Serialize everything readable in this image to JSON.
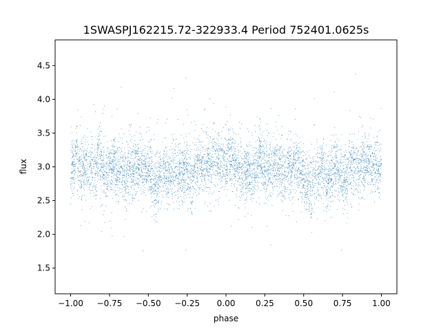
{
  "figure": {
    "title": "1SWASPJ162215.72-322933.4 Period 752401.0625s"
  },
  "chart_data": {
    "type": "scatter",
    "title": "1SWASPJ162215.72-322933.4 Period 752401.0625s",
    "xlabel": "phase",
    "ylabel": "flux",
    "xlim": [
      -1.1,
      1.1
    ],
    "ylim": [
      1.12,
      4.88
    ],
    "xticks": [
      {
        "value": -1.0,
        "label": "−1.00"
      },
      {
        "value": -0.75,
        "label": "−0.75"
      },
      {
        "value": -0.5,
        "label": "−0.50"
      },
      {
        "value": -0.25,
        "label": "−0.25"
      },
      {
        "value": 0.0,
        "label": "0.00"
      },
      {
        "value": 0.25,
        "label": "0.25"
      },
      {
        "value": 0.5,
        "label": "0.50"
      },
      {
        "value": 0.75,
        "label": "0.75"
      },
      {
        "value": 1.0,
        "label": "1.00"
      }
    ],
    "yticks": [
      {
        "value": 1.5,
        "label": "1.5"
      },
      {
        "value": 2.0,
        "label": "2.0"
      },
      {
        "value": 2.5,
        "label": "2.5"
      },
      {
        "value": 3.0,
        "label": "3.0"
      },
      {
        "value": 3.5,
        "label": "3.5"
      },
      {
        "value": 4.0,
        "label": "4.0"
      },
      {
        "value": 4.5,
        "label": "4.5"
      }
    ],
    "grid": false,
    "legend": "none",
    "point_color": "#1f77b4",
    "series": [
      {
        "description": "phase-folded light curve; dense band of small points",
        "x_range": [
          -1.0,
          1.0
        ],
        "median_flux": 3.0,
        "typical_flux_range": [
          2.5,
          3.5
        ],
        "extreme_flux_range": [
          1.3,
          4.7
        ],
        "points": [
          [
            -0.99,
            3.05
          ],
          [
            -0.98,
            2.95
          ],
          [
            -0.97,
            3.3
          ],
          [
            -0.96,
            3.6
          ],
          [
            -0.95,
            2.8
          ],
          [
            -0.94,
            3.1
          ],
          [
            -0.93,
            2.7
          ],
          [
            -0.92,
            3.0
          ],
          [
            -0.9,
            3.2
          ],
          [
            -0.88,
            2.85
          ],
          [
            -0.86,
            3.1
          ],
          [
            -0.84,
            2.9
          ],
          [
            -0.82,
            3.4
          ],
          [
            -0.8,
            3.0
          ],
          [
            -0.78,
            2.75
          ],
          [
            -0.75,
            2.95
          ],
          [
            -0.72,
            3.15
          ],
          [
            -0.7,
            2.8
          ],
          [
            -0.68,
            3.0
          ],
          [
            -0.65,
            2.7
          ],
          [
            -0.62,
            3.05
          ],
          [
            -0.6,
            2.9
          ],
          [
            -0.58,
            3.2
          ],
          [
            -0.55,
            2.85
          ],
          [
            -0.52,
            3.0
          ],
          [
            -0.5,
            2.95
          ],
          [
            -0.48,
            2.7
          ],
          [
            -0.46,
            2.5
          ],
          [
            -0.45,
            2.3
          ],
          [
            -0.43,
            2.8
          ],
          [
            -0.4,
            2.9
          ],
          [
            -0.38,
            2.6
          ],
          [
            -0.35,
            2.85
          ],
          [
            -0.32,
            3.0
          ],
          [
            -0.3,
            2.75
          ],
          [
            -0.28,
            2.9
          ],
          [
            -0.25,
            3.05
          ],
          [
            -0.22,
            2.45
          ],
          [
            -0.2,
            3.0
          ],
          [
            -0.18,
            3.1
          ],
          [
            -0.15,
            2.95
          ],
          [
            -0.12,
            3.2
          ],
          [
            -0.1,
            3.0
          ],
          [
            -0.08,
            3.3
          ],
          [
            -0.05,
            3.05
          ],
          [
            -0.02,
            3.15
          ],
          [
            0.0,
            2.95
          ],
          [
            0.02,
            3.4
          ],
          [
            0.05,
            3.1
          ],
          [
            0.08,
            2.9
          ],
          [
            0.1,
            3.0
          ],
          [
            0.12,
            2.8
          ],
          [
            0.15,
            2.95
          ],
          [
            0.18,
            2.7
          ],
          [
            0.2,
            3.05
          ],
          [
            0.22,
            3.3
          ],
          [
            0.25,
            2.85
          ],
          [
            0.28,
            3.0
          ],
          [
            0.3,
            2.75
          ],
          [
            0.32,
            3.1
          ],
          [
            0.35,
            2.9
          ],
          [
            0.38,
            2.7
          ],
          [
            0.4,
            3.05
          ],
          [
            0.42,
            2.85
          ],
          [
            0.45,
            3.2
          ],
          [
            0.48,
            2.9
          ],
          [
            0.5,
            2.7
          ],
          [
            0.52,
            2.55
          ],
          [
            0.55,
            2.3
          ],
          [
            0.57,
            2.6
          ],
          [
            0.6,
            2.9
          ],
          [
            0.62,
            3.05
          ],
          [
            0.65,
            2.6
          ],
          [
            0.68,
            2.8
          ],
          [
            0.7,
            3.0
          ],
          [
            0.72,
            2.95
          ],
          [
            0.75,
            2.7
          ],
          [
            0.78,
            2.6
          ],
          [
            0.8,
            3.0
          ],
          [
            0.82,
            3.1
          ],
          [
            0.85,
            2.9
          ],
          [
            0.88,
            3.15
          ],
          [
            0.9,
            2.95
          ],
          [
            0.92,
            3.3
          ],
          [
            0.94,
            3.0
          ],
          [
            0.96,
            3.1
          ],
          [
            0.98,
            2.9
          ],
          [
            1.0,
            3.05
          ]
        ]
      }
    ]
  }
}
